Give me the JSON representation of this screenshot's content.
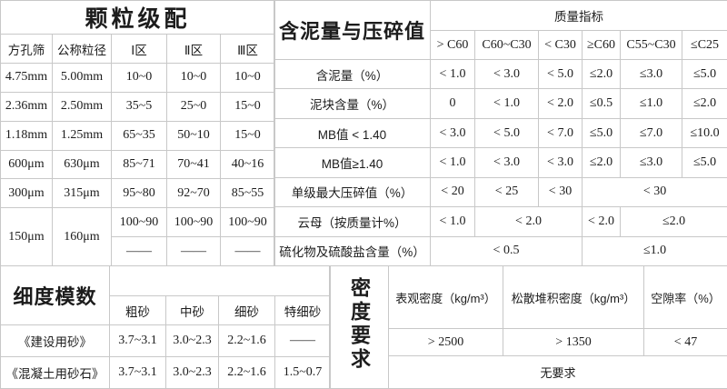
{
  "colors": {
    "background": "#ffffff",
    "border": "#c8c8c8",
    "text": "#1c1c1c"
  },
  "tables": {
    "gradation": {
      "title": "颗粒级配",
      "rows": [
        {
          "cls": "rt",
          "cells": [
            {
              "t": "颗粒级配",
              "cs": 5,
              "cls": "title"
            }
          ]
        },
        {
          "cls": "r2h",
          "cells": [
            {
              "t": "方孔筛",
              "cls": "lbl"
            },
            {
              "t": "公称粒径",
              "cls": "lbl"
            },
            {
              "t": "Ⅰ区",
              "cls": "lbl"
            },
            {
              "t": "Ⅱ区",
              "cls": "lbl"
            },
            {
              "t": "Ⅲ区",
              "cls": "lbl"
            }
          ]
        },
        {
          "cells": [
            {
              "t": "4.75mm"
            },
            {
              "t": "5.00mm"
            },
            {
              "t": "10~0"
            },
            {
              "t": "10~0"
            },
            {
              "t": "10~0"
            }
          ]
        },
        {
          "cells": [
            {
              "t": "2.36mm"
            },
            {
              "t": "2.50mm"
            },
            {
              "t": "35~5"
            },
            {
              "t": "25~0"
            },
            {
              "t": "15~0"
            }
          ]
        },
        {
          "cells": [
            {
              "t": "1.18mm"
            },
            {
              "t": "1.25mm"
            },
            {
              "t": "65~35"
            },
            {
              "t": "50~10"
            },
            {
              "t": "15~0"
            }
          ]
        },
        {
          "cells": [
            {
              "t": "600μm"
            },
            {
              "t": "630μm"
            },
            {
              "t": "85~71"
            },
            {
              "t": "70~41"
            },
            {
              "t": "40~16"
            }
          ]
        },
        {
          "cells": [
            {
              "t": "300μm"
            },
            {
              "t": "315μm"
            },
            {
              "t": "95~80"
            },
            {
              "t": "92~70"
            },
            {
              "t": "85~55"
            }
          ]
        },
        {
          "cells": [
            {
              "t": "150μm",
              "rs": 2
            },
            {
              "t": "160μm",
              "rs": 2
            },
            {
              "t": "100~90"
            },
            {
              "t": "100~90"
            },
            {
              "t": "100~90"
            }
          ]
        },
        {
          "cells": [
            {
              "t": "——"
            },
            {
              "t": "——"
            },
            {
              "t": "——"
            }
          ]
        }
      ]
    },
    "quality": {
      "title": "含泥量与压碎值",
      "header": "质量指标",
      "rows": [
        {
          "cls": "rt",
          "cells": [
            {
              "t": "含泥量与压碎值",
              "rs": 2,
              "cls": "title"
            },
            {
              "t": "质量指标",
              "cs": 6,
              "cls": "lbl"
            }
          ]
        },
        {
          "cls": "r2h",
          "cells": [
            {
              "t": "> C60"
            },
            {
              "t": "C60~C30"
            },
            {
              "t": "< C30"
            },
            {
              "t": "≥C60"
            },
            {
              "t": "C55~C30"
            },
            {
              "t": "≤C25"
            }
          ]
        },
        {
          "cells": [
            {
              "t": "含泥量（%）",
              "cls": "lbl"
            },
            {
              "t": "< 1.0"
            },
            {
              "t": "< 3.0"
            },
            {
              "t": "< 5.0"
            },
            {
              "t": "≤2.0"
            },
            {
              "t": "≤3.0"
            },
            {
              "t": "≤5.0"
            }
          ]
        },
        {
          "cells": [
            {
              "t": "泥块含量（%）",
              "cls": "lbl"
            },
            {
              "t": "0"
            },
            {
              "t": "< 1.0"
            },
            {
              "t": "< 2.0"
            },
            {
              "t": "≤0.5"
            },
            {
              "t": "≤1.0"
            },
            {
              "t": "≤2.0"
            }
          ]
        },
        {
          "cells": [
            {
              "t": "MB值 < 1.40",
              "cls": "lbl"
            },
            {
              "t": "< 3.0"
            },
            {
              "t": "< 5.0"
            },
            {
              "t": "< 7.0"
            },
            {
              "t": "≤5.0"
            },
            {
              "t": "≤7.0"
            },
            {
              "t": "≤10.0"
            }
          ]
        },
        {
          "cells": [
            {
              "t": "MB值≥1.40",
              "cls": "lbl"
            },
            {
              "t": "< 1.0"
            },
            {
              "t": "< 3.0"
            },
            {
              "t": "< 3.0"
            },
            {
              "t": "≤2.0"
            },
            {
              "t": "≤3.0"
            },
            {
              "t": "≤5.0"
            }
          ]
        },
        {
          "cells": [
            {
              "t": "单级最大压碎值（%）",
              "cls": "lbl"
            },
            {
              "t": "< 20"
            },
            {
              "t": "< 25"
            },
            {
              "t": "< 30"
            },
            {
              "t": "< 30",
              "cs": 3
            }
          ]
        },
        {
          "cells": [
            {
              "t": "云母（按质量计%）",
              "cls": "lbl"
            },
            {
              "t": "< 1.0"
            },
            {
              "t": "< 2.0",
              "cs": 2
            },
            {
              "t": "< 2.0"
            },
            {
              "t": "≤2.0",
              "cs": 2
            }
          ]
        },
        {
          "cells": [
            {
              "t": "硫化物及硫酸盐含量（%）",
              "cls": "lbl"
            },
            {
              "t": "< 0.5",
              "cs": 3
            },
            {
              "t": "≤1.0",
              "cs": 3
            }
          ]
        }
      ]
    },
    "fineness": {
      "title": "细度模数",
      "rows": [
        {
          "cls": "rt",
          "cells": [
            {
              "t": "细度模数",
              "rs": 2,
              "cls": "title"
            },
            {
              "t": "",
              "cs": 4
            }
          ]
        },
        {
          "cls": "r2h",
          "cells": [
            {
              "t": "粗砂",
              "cls": "lbl"
            },
            {
              "t": "中砂",
              "cls": "lbl"
            },
            {
              "t": "细砂",
              "cls": "lbl"
            },
            {
              "t": "特细砂",
              "cls": "lbl"
            }
          ]
        },
        {
          "cells": [
            {
              "t": "《建设用砂》",
              "cls": "lbl"
            },
            {
              "t": "3.7~3.1"
            },
            {
              "t": "3.0~2.3"
            },
            {
              "t": "2.2~1.6"
            },
            {
              "t": "——"
            }
          ]
        },
        {
          "cells": [
            {
              "t": "《混凝土用砂石》",
              "cls": "lbl"
            },
            {
              "t": "3.7~3.1"
            },
            {
              "t": "3.0~2.3"
            },
            {
              "t": "2.2~1.6"
            },
            {
              "t": "1.5~0.7"
            }
          ]
        }
      ]
    },
    "density": {
      "title": "密度要求",
      "rows": [
        {
          "cls": "rhead",
          "cells": [
            {
              "t": "密度要求",
              "rs": 3,
              "cls": "title vertical"
            },
            {
              "t": "表观密度（kg/m³）",
              "cls": "lbl"
            },
            {
              "t": "松散堆积密度（kg/m³）",
              "cls": "lbl"
            },
            {
              "t": "空隙率（%）",
              "cls": "lbl"
            }
          ]
        },
        {
          "cells": [
            {
              "t": "> 2500"
            },
            {
              "t": "> 1350"
            },
            {
              "t": "< 47"
            }
          ]
        },
        {
          "cells": [
            {
              "t": "无要求",
              "cs": 3,
              "cls": "lbl"
            }
          ]
        }
      ]
    }
  }
}
